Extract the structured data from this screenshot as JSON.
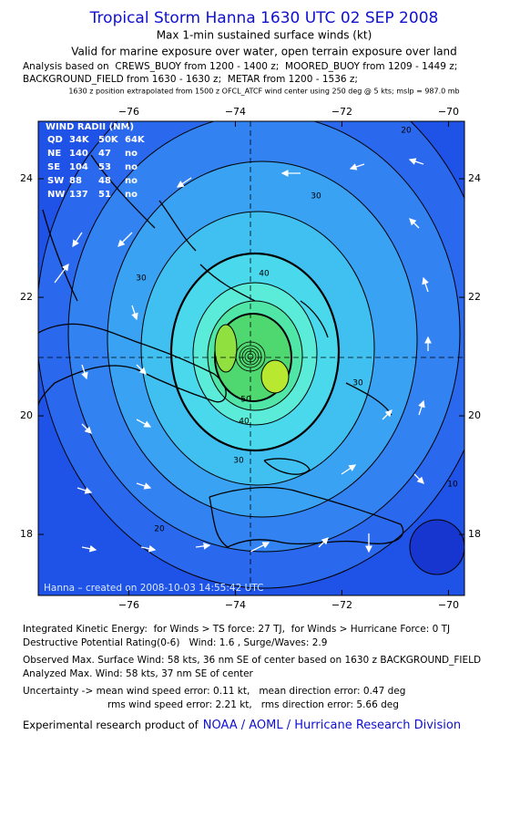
{
  "header": {
    "title": "Tropical Storm Hanna 1630 UTC 02 SEP 2008",
    "subtitle": "Max 1-min sustained surface winds (kt)",
    "valid": "Valid for marine exposure over water, open terrain exposure over land",
    "analysis_lines": [
      "Analysis based on  CREWS_BUOY from 1200 - 1400 z;  MOORED_BUOY from 1209 - 1449 z;",
      "BACKGROUND_FIELD from 1630 - 1630 z;  METAR from 1200 - 1536 z;"
    ],
    "note": "1630 z position extrapolated from 1500 z OFCL_ATCF wind center using 250 deg @ 5 kts; mslp = 987.0 mb"
  },
  "map": {
    "xlim": [
      -77.7,
      -69.7
    ],
    "ylim": [
      16.97,
      24.97
    ],
    "xticks": [
      {
        "value": -76,
        "label": "−76"
      },
      {
        "value": -74,
        "label": "−74"
      },
      {
        "value": -72,
        "label": "−72"
      },
      {
        "value": -70,
        "label": "−70"
      }
    ],
    "yticks": [
      18,
      20,
      22,
      24
    ],
    "wind_radii": {
      "title": "WIND RADII (NM)",
      "columns": [
        "QD",
        "34K",
        "50K",
        "64K"
      ],
      "rows": [
        [
          "NE",
          "140",
          "47",
          "no"
        ],
        [
          "SE",
          "104",
          "53",
          "no"
        ],
        [
          "SW",
          "88",
          "48",
          "no"
        ],
        [
          "NW",
          "137",
          "51",
          "no"
        ]
      ]
    },
    "contour_labels": [
      30,
      30,
      40,
      40,
      50,
      30,
      30,
      20,
      20,
      10
    ],
    "watermark": "Hanna – created on 2008-10-03 14:55:42 UTC"
  },
  "footer": {
    "lines": [
      "Integrated Kinetic Energy:  for Winds > TS force: 27 TJ,  for Winds > Hurricane Force: 0 TJ",
      "Destructive Potential Rating(0-6)   Wind: 1.6 , Surge/Waves: 2.9",
      "Observed Max. Surface Wind: 58 kts, 36 nm SE of center based on 1630 z BACKGROUND_FIELD",
      "Analyzed Max. Wind: 58 kts, 37 nm SE of center",
      "Uncertainty -> mean wind speed error: 0.11 kt,   mean direction error: 0.47 deg",
      "rms wind speed error: 2.21 kt,   rms direction error: 5.66 deg"
    ],
    "credit": "Experimental research product of",
    "link": "NOAA / AOML / Hurricane Research Division"
  }
}
